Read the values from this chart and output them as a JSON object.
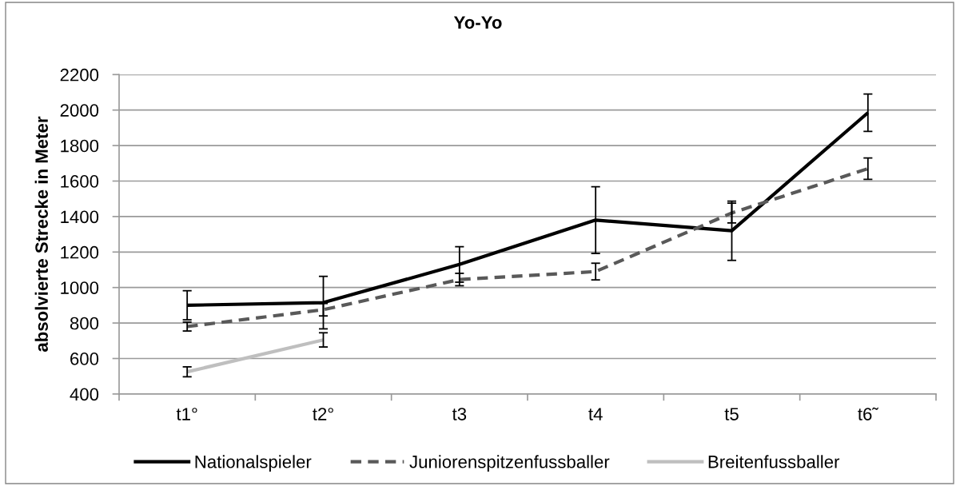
{
  "chart_data": {
    "type": "line",
    "title": "Yo-Yo",
    "ylabel": "absolvierte Strecke in Meter",
    "categories": [
      "t1°",
      "t2°",
      "t3",
      "t4",
      "t5",
      "t6˜"
    ],
    "series": [
      {
        "name": "Nationalspieler",
        "color": "#000000",
        "line_style": "solid",
        "values": [
          900,
          915,
          1130,
          1380,
          1320,
          1985
        ],
        "errors": [
          82,
          148,
          100,
          188,
          167,
          105
        ]
      },
      {
        "name": "Juniorenspitzenfussballer",
        "color": "#595959",
        "line_style": "dashed",
        "values": [
          780,
          875,
          1045,
          1090,
          1420,
          1670
        ],
        "errors": [
          25,
          35,
          35,
          47,
          56,
          60
        ]
      },
      {
        "name": "Breitenfussballer",
        "color": "#bfbfbf",
        "line_style": "solid",
        "values": [
          525,
          705,
          null,
          null,
          null,
          null
        ],
        "errors": [
          28,
          40,
          null,
          null,
          null,
          null
        ]
      }
    ],
    "ylim": [
      400,
      2200
    ],
    "yticks": [
      400,
      600,
      800,
      1000,
      1200,
      1400,
      1600,
      1800,
      2000,
      2200
    ],
    "grid": "y",
    "legend": "bottom"
  }
}
